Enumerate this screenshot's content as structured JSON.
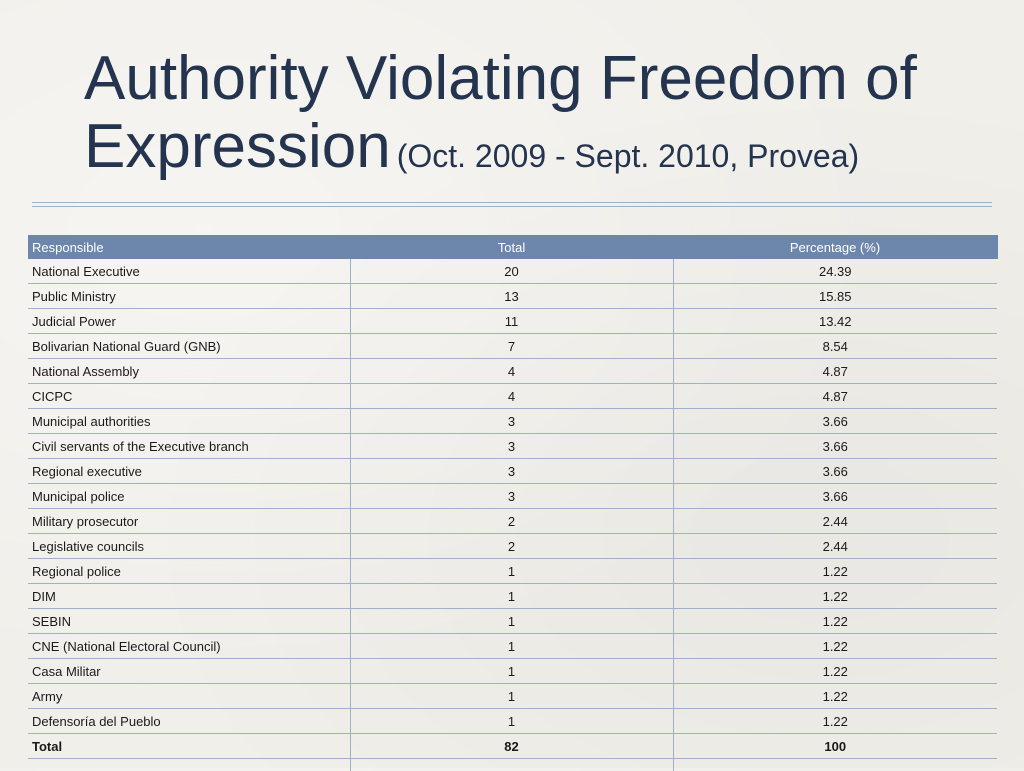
{
  "slide": {
    "title_line1": "Authority Violating Freedom of",
    "title_line2": "Expression",
    "title_sub": "(Oct. 2009 - Sept. 2010, Provea)"
  },
  "table": {
    "headers": [
      "Responsible",
      "Total",
      "Percentage (%)"
    ],
    "rows": [
      [
        "National Executive",
        "20",
        "24.39"
      ],
      [
        "Public Ministry",
        "13",
        "15.85"
      ],
      [
        "Judicial Power",
        "11",
        "13.42"
      ],
      [
        "Bolivarian National Guard (GNB)",
        "7",
        "8.54"
      ],
      [
        "National Assembly",
        "4",
        "4.87"
      ],
      [
        "CICPC",
        "4",
        "4.87"
      ],
      [
        "Municipal authorities",
        "3",
        "3.66"
      ],
      [
        "Civil servants of the Executive branch",
        "3",
        "3.66"
      ],
      [
        "Regional executive",
        "3",
        "3.66"
      ],
      [
        "Municipal police",
        "3",
        "3.66"
      ],
      [
        "Military prosecutor",
        "2",
        "2.44"
      ],
      [
        "Legislative councils",
        "2",
        "2.44"
      ],
      [
        "Regional police",
        "1",
        "1.22"
      ],
      [
        "DIM",
        "1",
        "1.22"
      ],
      [
        "SEBIN",
        "1",
        "1.22"
      ],
      [
        "CNE (National Electoral Council)",
        "1",
        "1.22"
      ],
      [
        "Casa Militar",
        "1",
        "1.22"
      ],
      [
        "Army",
        "1",
        "1.22"
      ],
      [
        "Defensoría del Pueblo",
        "1",
        "1.22"
      ]
    ],
    "total": [
      "Total",
      "82",
      "100"
    ]
  },
  "colors": {
    "title": "#24344e",
    "header_bg": "#6d86ac",
    "grid": "#9fb0c8",
    "background": "#f1efea"
  }
}
